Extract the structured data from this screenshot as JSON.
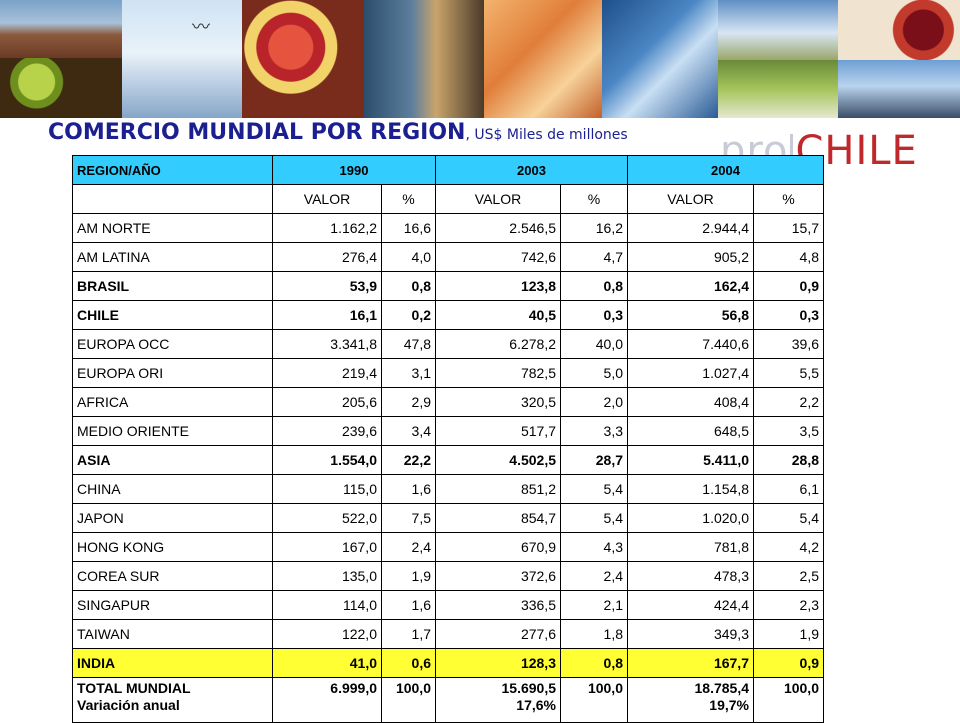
{
  "header": {
    "title": "COMERCIO MUNDIAL POR REGION",
    "subtitle": ", US$ Miles de millones"
  },
  "logo": {
    "pro": "pro",
    "chile": "CHILE"
  },
  "table": {
    "headers": [
      "REGION/AÑO",
      "1990",
      "2003",
      "2004"
    ],
    "subheaders": [
      "VALOR",
      "%",
      "VALOR",
      "%",
      "VALOR",
      "%"
    ],
    "rows": [
      {
        "name": "AM NORTE",
        "cells": [
          "1.162,2",
          "16,6",
          "2.546,5",
          "16,2",
          "2.944,4",
          "15,7"
        ]
      },
      {
        "name": "AM LATINA",
        "cells": [
          "276,4",
          "4,0",
          "742,6",
          "4,7",
          "905,2",
          "4,8"
        ]
      },
      {
        "name": "BRASIL",
        "cells": [
          "53,9",
          "0,8",
          "123,8",
          "0,8",
          "162,4",
          "0,9"
        ]
      },
      {
        "name": "CHILE",
        "cells": [
          "16,1",
          "0,2",
          "40,5",
          "0,3",
          "56,8",
          "0,3"
        ]
      },
      {
        "name": "EUROPA OCC",
        "cells": [
          "3.341,8",
          "47,8",
          "6.278,2",
          "40,0",
          "7.440,6",
          "39,6"
        ]
      },
      {
        "name": "EUROPA ORI",
        "cells": [
          "219,4",
          "3,1",
          "782,5",
          "5,0",
          "1.027,4",
          "5,5"
        ]
      },
      {
        "name": "AFRICA",
        "cells": [
          "205,6",
          "2,9",
          "320,5",
          "2,0",
          "408,4",
          "2,2"
        ]
      },
      {
        "name": "MEDIO ORIENTE",
        "cells": [
          "239,6",
          "3,4",
          "517,7",
          "3,3",
          "648,5",
          "3,5"
        ]
      },
      {
        "name": "ASIA",
        "cells": [
          "1.554,0",
          "22,2",
          "4.502,5",
          "28,7",
          "5.411,0",
          "28,8"
        ]
      },
      {
        "name": "CHINA",
        "cells": [
          "115,0",
          "1,6",
          "851,2",
          "5,4",
          "1.154,8",
          "6,1"
        ]
      },
      {
        "name": "JAPON",
        "cells": [
          "522,0",
          "7,5",
          "854,7",
          "5,4",
          "1.020,0",
          "5,4"
        ]
      },
      {
        "name": "HONG KONG",
        "cells": [
          "167,0",
          "2,4",
          "670,9",
          "4,3",
          "781,8",
          "4,2"
        ]
      },
      {
        "name": "COREA SUR",
        "cells": [
          "135,0",
          "1,9",
          "372,6",
          "2,4",
          "478,3",
          "2,5"
        ]
      },
      {
        "name": "SINGAPUR",
        "cells": [
          "114,0",
          "1,6",
          "336,5",
          "2,1",
          "424,4",
          "2,3"
        ]
      },
      {
        "name": "TAIWAN",
        "cells": [
          "122,0",
          "1,7",
          "277,6",
          "1,8",
          "349,3",
          "1,9"
        ]
      },
      {
        "name": "INDIA",
        "cells": [
          "41,0",
          "0,6",
          "128,3",
          "0,8",
          "167,7",
          "0,9"
        ]
      }
    ],
    "total": {
      "name": "TOTAL MUNDIAL",
      "variation_label": "Variación anual",
      "cells": [
        "6.999,0",
        "100,0",
        "15.690,5",
        "100,0",
        "18.785,4",
        "100,0"
      ],
      "variation_2003": "17,6%",
      "variation_2004": "19,7%"
    }
  },
  "colors": {
    "header_bg": "#33ccff",
    "highlight_bg": "#ffff33",
    "title": "#1b1f8f",
    "logo_red": "#c0282c"
  }
}
